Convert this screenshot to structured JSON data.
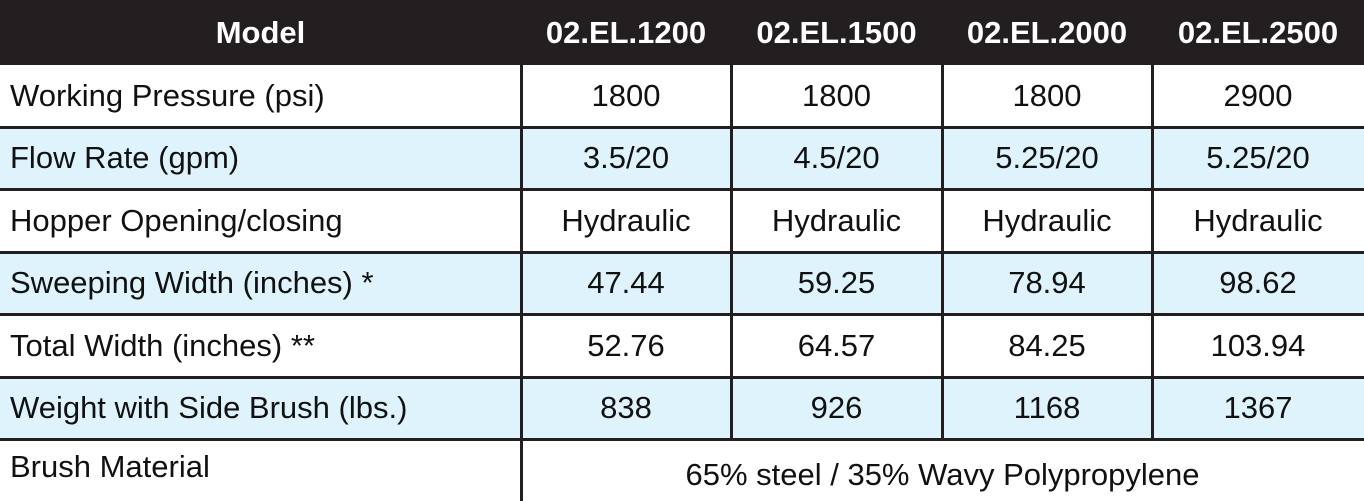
{
  "table": {
    "header": [
      "Model",
      "02.EL.1200",
      "02.EL.1500",
      "02.EL.2000",
      "02.EL.2500"
    ],
    "rows": [
      [
        "Working Pressure (psi)",
        "1800",
        "1800",
        "1800",
        "2900"
      ],
      [
        "Flow Rate (gpm)",
        "3.5/20",
        "4.5/20",
        "5.25/20",
        "5.25/20"
      ],
      [
        "Hopper Opening/closing",
        "Hydraulic",
        "Hydraulic",
        "Hydraulic",
        "Hydraulic"
      ],
      [
        "Sweeping Width (inches) *",
        "47.44",
        "59.25",
        "78.94",
        "98.62"
      ],
      [
        "Total Width (inches) **",
        "52.76",
        "64.57",
        "84.25",
        "103.94"
      ],
      [
        "Weight with Side Brush (lbs.)",
        "838",
        "926",
        "1168",
        "1367"
      ],
      [
        "Brush Material",
        "65% steel / 35% Wavy Polypropylene"
      ]
    ]
  }
}
